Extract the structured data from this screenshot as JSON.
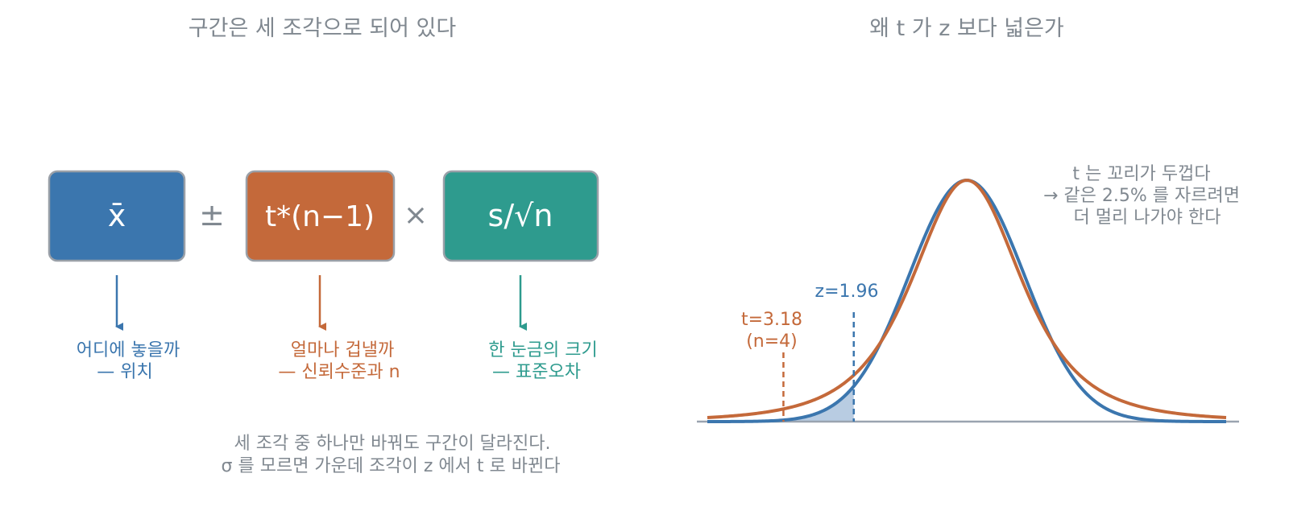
{
  "left_panel": {
    "title": "구간은 세 조각으로 되어 있다",
    "boxes": [
      {
        "label": "x̄",
        "color": "#3b76ae",
        "caption_line1": "어디에 놓을까",
        "caption_line2": "— 위치"
      },
      {
        "label": "t*(n−1)",
        "color": "#c4693a",
        "caption_line1": "얼마나 겁낼까",
        "caption_line2": "— 신뢰수준과 n"
      },
      {
        "label": "s/√n",
        "color": "#2e9b8e",
        "caption_line1": "한 눈금의 크기",
        "caption_line2": "— 표준오차"
      }
    ],
    "operators": {
      "plus_minus": "±",
      "times": "×"
    },
    "note_line1": "세 조각 중 하나만 바꿔도 구간이 달라진다.",
    "note_line2": "σ 를 모르면 가운데 조각이 z 에서 t 로 바뀐다"
  },
  "right_panel": {
    "title": "왜 t 가 z 보다 넓은가",
    "annotation_line1": "t 는 꼬리가 두껍다",
    "annotation_line2": "→ 같은 2.5% 를 자르려면",
    "annotation_line3": "더 멀리 나가야 한다",
    "z_label": "z=1.96",
    "t_label_line1": "t=3.18",
    "t_label_line2": "(n=4)"
  },
  "chart_data": {
    "type": "line",
    "series": [
      {
        "name": "z",
        "distribution": "normal",
        "color": "#3b76ae",
        "critical_value": -1.96
      },
      {
        "name": "t",
        "distribution": "student-t",
        "df": 3,
        "color": "#c4693a",
        "critical_value": -3.18
      }
    ],
    "xlim": [
      -4.5,
      4.5
    ],
    "shaded_tail": "z below -1.96",
    "title": "왜 t 가 z 보다 넓은가"
  },
  "colors": {
    "text_gray": "#808890",
    "box_border": "#9aa0a8",
    "axis": "#9aa4b0",
    "shade": "#b8cce2"
  }
}
